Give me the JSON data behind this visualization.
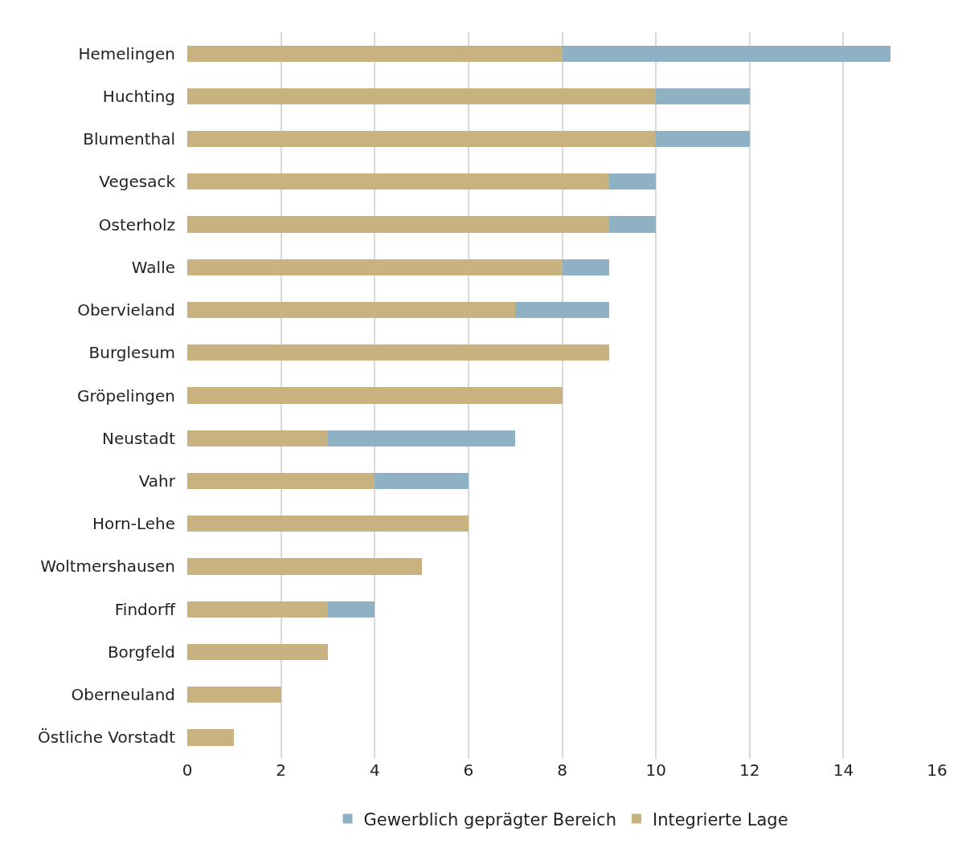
{
  "chart_data": {
    "type": "bar",
    "orientation": "horizontal",
    "stacked": true,
    "categories": [
      "Hemelingen",
      "Huchting",
      "Blumenthal",
      "Vegesack",
      "Osterholz",
      "Walle",
      "Obervieland",
      "Burglesum",
      "Gröpelingen",
      "Neustadt",
      "Vahr",
      "Horn-Lehe",
      "Woltmershausen",
      "Findorff",
      "Borgfeld",
      "Oberneuland",
      "Östliche Vorstadt"
    ],
    "series": [
      {
        "name": "Integrierte Lage",
        "color": "#c8b27f",
        "values": [
          8,
          10,
          10,
          9,
          9,
          8,
          7,
          9,
          8,
          3,
          4,
          6,
          5,
          3,
          3,
          2,
          1
        ]
      },
      {
        "name": "Gewerblich geprägter Bereich",
        "color": "#8eb2c4",
        "values": [
          7,
          2,
          2,
          1,
          1,
          1,
          2,
          0,
          0,
          4,
          2,
          0,
          0,
          1,
          0,
          0,
          0
        ]
      }
    ],
    "xlim": [
      0,
      16
    ],
    "xticks": [
      0,
      2,
      4,
      6,
      8,
      10,
      12,
      14,
      16
    ],
    "grid": "x",
    "legend": "bottom"
  }
}
